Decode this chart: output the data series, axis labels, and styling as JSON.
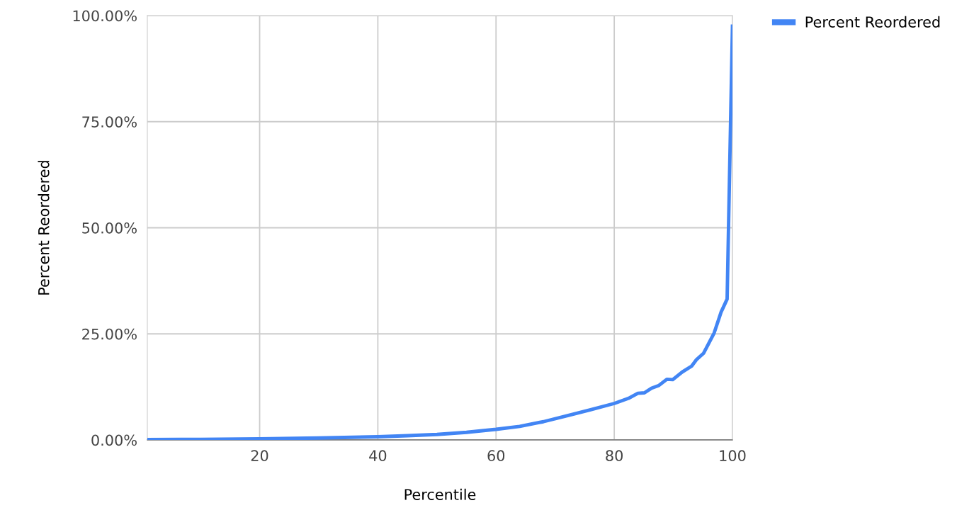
{
  "chart_data": {
    "type": "line",
    "xlabel": "Percentile",
    "ylabel": "Percent Reordered",
    "x": [
      1,
      10,
      20,
      30,
      40,
      45,
      50,
      55,
      60,
      64,
      68,
      72,
      76,
      80,
      82.4,
      84,
      85.1,
      86.3,
      87.5,
      88.9,
      89.9,
      91.5,
      93.1,
      93.9,
      95.1,
      96.9,
      98.1,
      99.1,
      100
    ],
    "series": [
      {
        "name": "Percent Reordered",
        "color": "#4285f4",
        "values": [
          0.1,
          0.15,
          0.25,
          0.45,
          0.75,
          1.0,
          1.3,
          1.8,
          2.5,
          3.2,
          4.3,
          5.7,
          7.1,
          8.6,
          9.8,
          11.0,
          11.1,
          12.2,
          12.8,
          14.3,
          14.2,
          16.0,
          17.4,
          18.9,
          20.4,
          25.2,
          30.2,
          33.2,
          97.5
        ]
      }
    ],
    "xlim": [
      1,
      100
    ],
    "xticks": [
      20,
      40,
      60,
      80,
      100
    ],
    "ylim": [
      0,
      100
    ],
    "yticks": [
      {
        "value": 0,
        "label": "0.00%"
      },
      {
        "value": 25,
        "label": "25.00%"
      },
      {
        "value": 50,
        "label": "50.00%"
      },
      {
        "value": 75,
        "label": "75.00%"
      },
      {
        "value": 100,
        "label": "100.00%"
      }
    ],
    "grid": true,
    "legend": "top right",
    "marker": "none",
    "line_style": "solid"
  }
}
